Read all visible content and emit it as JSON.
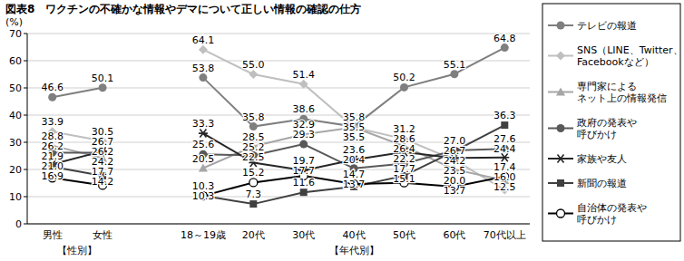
{
  "chart_data": {
    "type": "line",
    "title": "図表8　ワクチンの不確かな情報やデマについて正しい情報の確認の仕方",
    "y_label": "(%)",
    "categories": [
      "男性",
      "女性",
      null,
      "18～19歳",
      "20代",
      "30代",
      "40代",
      "50代",
      "60代",
      "70代以上"
    ],
    "x_groups": [
      {
        "label": "【性別】",
        "categories": [
          "男性",
          "女性"
        ]
      },
      {
        "label": "【年代別】",
        "categories": [
          "18～19歳",
          "20代",
          "30代",
          "40代",
          "50代",
          "60代",
          "70代以上"
        ]
      }
    ],
    "ylim": [
      0,
      70
    ],
    "yticks": [
      0,
      10,
      20,
      30,
      40,
      50,
      60,
      70
    ],
    "grid": true,
    "data_labels": true,
    "legend": "right",
    "series": [
      {
        "name": "テレビの報道",
        "color": "#7f7f7f",
        "marker": "circle",
        "values": [
          46.6,
          50.1,
          null,
          53.8,
          35.8,
          38.6,
          35.8,
          50.2,
          55.1,
          64.8
        ]
      },
      {
        "name": "SNS（LINE、Twitter、\nFacebookなど）",
        "color": "#bfbfbf",
        "marker": "diamond",
        "values": [
          33.9,
          30.5,
          null,
          64.1,
          55.0,
          51.4,
          35.5,
          31.2,
          23.5,
          12.5
        ]
      },
      {
        "name": "専門家による\nネット上の情報発信",
        "color": "#a6a6a6",
        "marker": "triangle",
        "values": [
          28.8,
          24.2,
          null,
          20.5,
          28.5,
          32.9,
          35.5,
          28.6,
          20.0,
          16.0
        ]
      },
      {
        "name": "政府の発表や\n呼びかけ",
        "color": "#595959",
        "marker": "circle",
        "values": [
          26.2,
          26.2,
          null,
          25.6,
          25.2,
          29.3,
          20.4,
          22.2,
          27.0,
          27.6
        ]
      },
      {
        "name": "家族や友人",
        "color": "#262626",
        "marker": "asterisk",
        "values": [
          21.9,
          26.7,
          null,
          33.3,
          22.5,
          19.7,
          23.6,
          26.4,
          24.2,
          24.4
        ]
      },
      {
        "name": "新聞の報道",
        "color": "#404040",
        "marker": "square",
        "values": [
          21.0,
          17.7,
          null,
          10.3,
          7.3,
          11.6,
          13.7,
          17.7,
          26.7,
          36.3
        ]
      },
      {
        "name": "自治体の発表や\n呼びかけ",
        "color": "#000000",
        "marker": "open_circle",
        "values": [
          16.9,
          14.2,
          null,
          10.3,
          15.2,
          17.7,
          14.7,
          15.1,
          13.7,
          17.4
        ]
      }
    ]
  }
}
